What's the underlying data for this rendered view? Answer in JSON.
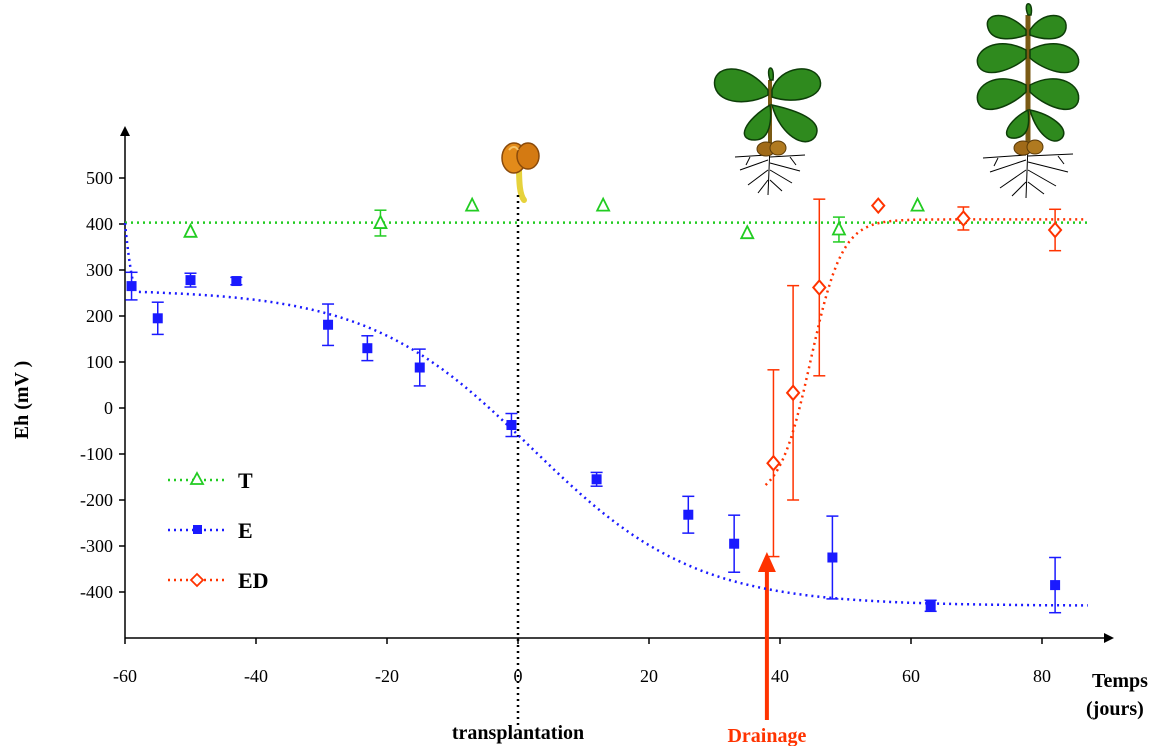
{
  "chart_data": {
    "type": "scatter",
    "ylabel": "Eh (mV )",
    "xlabel": "Temps (jours)",
    "xlabel_line1": "Temps",
    "xlabel_line2": "(jours)",
    "xlim": [
      -60,
      87
    ],
    "ylim": [
      -500,
      570
    ],
    "x_ticks": [
      -60,
      -40,
      -20,
      0,
      20,
      40,
      60,
      80
    ],
    "y_ticks": [
      500,
      400,
      300,
      200,
      100,
      0,
      -100,
      -200,
      -300,
      -400
    ],
    "grid": false,
    "legend_position": "bottom-left",
    "annotations": {
      "transplantation": {
        "label": "transplantation",
        "x": 0
      },
      "drainage": {
        "label": "Drainage",
        "x": 38
      }
    },
    "series": [
      {
        "name": "T",
        "color": "#22cc22",
        "marker": "triangle-open",
        "fit": "constant",
        "fit_value": 403,
        "points": [
          {
            "x": -50,
            "y": 383,
            "err": 0
          },
          {
            "x": -21,
            "y": 402,
            "err": 28
          },
          {
            "x": -7,
            "y": 440,
            "err": 0
          },
          {
            "x": 13,
            "y": 440,
            "err": 0
          },
          {
            "x": 35,
            "y": 380,
            "err": 0
          },
          {
            "x": 49,
            "y": 388,
            "err": 27
          },
          {
            "x": 61,
            "y": 440,
            "err": 0
          }
        ]
      },
      {
        "name": "E",
        "color": "#1a1aff",
        "marker": "square",
        "fit": "sigmoid",
        "points": [
          {
            "x": -59,
            "y": 265,
            "err": 30
          },
          {
            "x": -55,
            "y": 195,
            "err": 35
          },
          {
            "x": -50,
            "y": 278,
            "err": 15
          },
          {
            "x": -43,
            "y": 276,
            "err": 8
          },
          {
            "x": -29,
            "y": 181,
            "err": 45
          },
          {
            "x": -23,
            "y": 130,
            "err": 27
          },
          {
            "x": -15,
            "y": 88,
            "err": 40
          },
          {
            "x": -1,
            "y": -37,
            "err": 25
          },
          {
            "x": 12,
            "y": -155,
            "err": 15
          },
          {
            "x": 26,
            "y": -232,
            "err": 40
          },
          {
            "x": 33,
            "y": -295,
            "err": 62
          },
          {
            "x": 48,
            "y": -325,
            "err": 90
          },
          {
            "x": 63,
            "y": -430,
            "err": 12
          },
          {
            "x": 82,
            "y": -385,
            "err": 60
          }
        ]
      },
      {
        "name": "ED",
        "color": "#ff3300",
        "marker": "diamond-open",
        "fit": "sigmoid",
        "points": [
          {
            "x": 39,
            "y": -120,
            "err": 203
          },
          {
            "x": 42,
            "y": 33,
            "err": 233
          },
          {
            "x": 46,
            "y": 262,
            "err": 192
          },
          {
            "x": 55,
            "y": 440,
            "err": 0
          },
          {
            "x": 68,
            "y": 412,
            "err": 25
          },
          {
            "x": 82,
            "y": 387,
            "err": 45
          }
        ]
      }
    ]
  }
}
